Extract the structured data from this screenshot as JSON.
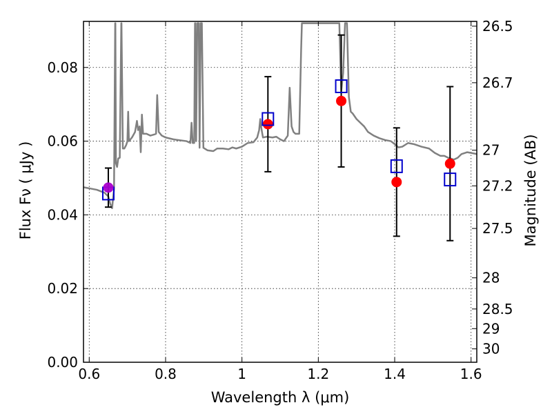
{
  "chart_data": {
    "type": "scatter",
    "title": "",
    "xlabel": "Wavelength  λ (μm)",
    "ylabel": "Flux  Fν  ( μJy )",
    "ylabel_right": "Magnitude (AB)",
    "xlim": [
      0.585,
      1.615
    ],
    "ylim": [
      0.0,
      0.0925
    ],
    "grid": true,
    "x_ticks": [
      0.6,
      0.8,
      1.0,
      1.2,
      1.4,
      1.6
    ],
    "x_tick_labels": [
      "0.6",
      "0.8",
      "1",
      "1.2",
      "1.4",
      "1.6"
    ],
    "y_ticks": [
      0.0,
      0.02,
      0.04,
      0.06,
      0.08
    ],
    "y_tick_labels": [
      "0.00",
      "0.02",
      "0.04",
      "0.06",
      "0.08"
    ],
    "mag_ticks": [
      26.5,
      26.7,
      27,
      27.2,
      27.5,
      28,
      28.5,
      29,
      30
    ],
    "mag_tick_labels": [
      "26.5",
      "26.7",
      "27",
      "27.2",
      "27.5",
      "28",
      "28.5",
      "29",
      "30"
    ],
    "colors": {
      "model": "#808080",
      "observed": "#ff0000",
      "model_band": "#0000cc",
      "first_point": "#aa00cc",
      "errorbar": "#000000"
    },
    "series": [
      {
        "kind": "line",
        "points": [
          [
            0.585,
            0.0475
          ],
          [
            0.6,
            0.0472
          ],
          [
            0.62,
            0.0468
          ],
          [
            0.64,
            0.046
          ],
          [
            0.645,
            0.0455
          ],
          [
            0.65,
            0.045
          ],
          [
            0.655,
            0.043
          ],
          [
            0.66,
            0.0418
          ],
          [
            0.662,
            0.044
          ],
          [
            0.665,
            0.047
          ],
          [
            0.668,
            0.092
          ],
          [
            0.6685,
            0.092
          ],
          [
            0.67,
            0.054
          ],
          [
            0.673,
            0.053
          ],
          [
            0.676,
            0.0553
          ],
          [
            0.68,
            0.0555
          ],
          [
            0.684,
            0.092
          ],
          [
            0.6845,
            0.092
          ],
          [
            0.688,
            0.058
          ],
          [
            0.692,
            0.058
          ],
          [
            0.697,
            0.059
          ],
          [
            0.7,
            0.06
          ],
          [
            0.702,
            0.068
          ],
          [
            0.704,
            0.06
          ],
          [
            0.712,
            0.061
          ],
          [
            0.72,
            0.0625
          ],
          [
            0.725,
            0.0655
          ],
          [
            0.728,
            0.063
          ],
          [
            0.732,
            0.064
          ],
          [
            0.735,
            0.057
          ],
          [
            0.738,
            0.0672
          ],
          [
            0.741,
            0.062
          ],
          [
            0.75,
            0.062
          ],
          [
            0.76,
            0.0615
          ],
          [
            0.77,
            0.0618
          ],
          [
            0.775,
            0.062
          ],
          [
            0.778,
            0.0725
          ],
          [
            0.782,
            0.0625
          ],
          [
            0.79,
            0.0615
          ],
          [
            0.8,
            0.061
          ],
          [
            0.82,
            0.0605
          ],
          [
            0.84,
            0.0602
          ],
          [
            0.855,
            0.06
          ],
          [
            0.865,
            0.0595
          ],
          [
            0.868,
            0.065
          ],
          [
            0.871,
            0.0595
          ],
          [
            0.875,
            0.0595
          ],
          [
            0.877,
            0.092
          ],
          [
            0.878,
            0.092
          ],
          [
            0.88,
            0.06
          ],
          [
            0.883,
            0.092
          ],
          [
            0.887,
            0.092
          ],
          [
            0.889,
            0.0582
          ],
          [
            0.892,
            0.092
          ],
          [
            0.895,
            0.092
          ],
          [
            0.899,
            0.0582
          ],
          [
            0.91,
            0.0575
          ],
          [
            0.925,
            0.0573
          ],
          [
            0.935,
            0.058
          ],
          [
            0.95,
            0.058
          ],
          [
            0.965,
            0.0578
          ],
          [
            0.975,
            0.0583
          ],
          [
            0.985,
            0.058
          ],
          [
            1.0,
            0.0585
          ],
          [
            1.015,
            0.0595
          ],
          [
            1.03,
            0.0597
          ],
          [
            1.04,
            0.061
          ],
          [
            1.045,
            0.063
          ],
          [
            1.048,
            0.066
          ],
          [
            1.05,
            0.064
          ],
          [
            1.055,
            0.061
          ],
          [
            1.065,
            0.0612
          ],
          [
            1.08,
            0.061
          ],
          [
            1.09,
            0.0612
          ],
          [
            1.1,
            0.0605
          ],
          [
            1.11,
            0.06
          ],
          [
            1.12,
            0.0615
          ],
          [
            1.125,
            0.0745
          ],
          [
            1.13,
            0.064
          ],
          [
            1.135,
            0.0625
          ],
          [
            1.14,
            0.062
          ],
          [
            1.15,
            0.062
          ],
          [
            1.155,
            0.085
          ],
          [
            1.157,
            0.092
          ],
          [
            1.255,
            0.092
          ],
          [
            1.26,
            0.0735
          ],
          [
            1.265,
            0.0785
          ],
          [
            1.27,
            0.092
          ],
          [
            1.275,
            0.092
          ],
          [
            1.28,
            0.072
          ],
          [
            1.285,
            0.068
          ],
          [
            1.29,
            0.0675
          ],
          [
            1.3,
            0.066
          ],
          [
            1.31,
            0.065
          ],
          [
            1.32,
            0.064
          ],
          [
            1.33,
            0.0625
          ],
          [
            1.345,
            0.0615
          ],
          [
            1.36,
            0.0608
          ],
          [
            1.375,
            0.0603
          ],
          [
            1.39,
            0.06
          ],
          [
            1.4,
            0.0592
          ],
          [
            1.41,
            0.0583
          ],
          [
            1.42,
            0.0585
          ],
          [
            1.435,
            0.0595
          ],
          [
            1.45,
            0.0592
          ],
          [
            1.47,
            0.0585
          ],
          [
            1.49,
            0.058
          ],
          [
            1.505,
            0.0568
          ],
          [
            1.52,
            0.056
          ],
          [
            1.53,
            0.056
          ],
          [
            1.54,
            0.0555
          ],
          [
            1.555,
            0.055
          ],
          [
            1.565,
            0.0555
          ],
          [
            1.575,
            0.0565
          ],
          [
            1.59,
            0.057
          ],
          [
            1.6,
            0.0568
          ],
          [
            1.615,
            0.0565
          ]
        ]
      },
      {
        "kind": "observed",
        "points": [
          {
            "x": 1.068,
            "y": 0.0646,
            "yerr": 0.0129
          },
          {
            "x": 1.26,
            "y": 0.0709,
            "yerr": 0.0179
          },
          {
            "x": 1.405,
            "y": 0.0489,
            "yerr": 0.0147
          },
          {
            "x": 1.545,
            "y": 0.0539,
            "yerr": 0.0209
          }
        ]
      },
      {
        "kind": "first_point",
        "points": [
          {
            "x": 0.65,
            "y": 0.0474,
            "yerr": 0.0053
          }
        ]
      },
      {
        "kind": "model_band",
        "points": [
          {
            "x": 0.65,
            "y": 0.0458
          },
          {
            "x": 1.068,
            "y": 0.066
          },
          {
            "x": 1.26,
            "y": 0.0749
          },
          {
            "x": 1.405,
            "y": 0.0532
          },
          {
            "x": 1.545,
            "y": 0.0496
          }
        ]
      }
    ]
  }
}
